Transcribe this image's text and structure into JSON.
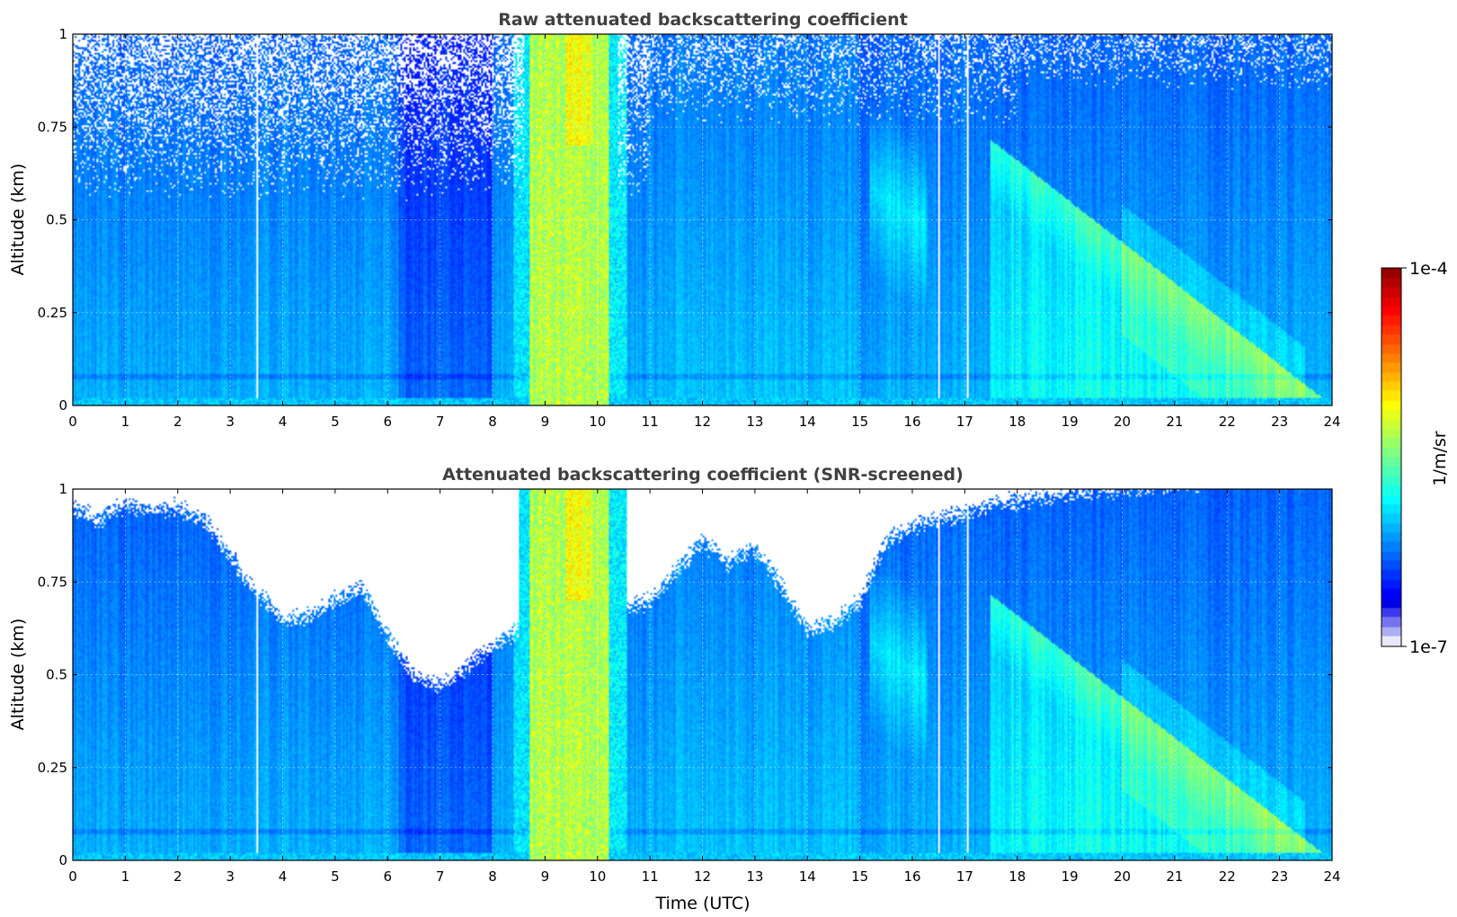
{
  "chart_data": [
    {
      "type": "heatmap",
      "title": "Raw attenuated backscattering coefficient",
      "xlabel": "",
      "ylabel": "Altitude (km)",
      "xlim": [
        0,
        24
      ],
      "ylim": [
        0,
        1
      ],
      "xticks": [
        "0",
        "1",
        "2",
        "3",
        "4",
        "5",
        "6",
        "7",
        "8",
        "9",
        "10",
        "11",
        "12",
        "13",
        "14",
        "15",
        "16",
        "17",
        "18",
        "19",
        "20",
        "21",
        "22",
        "23",
        "24"
      ],
      "yticks": [
        "0",
        "0.25",
        "0.5",
        "0.75",
        "1"
      ],
      "grid": true,
      "screened": false
    },
    {
      "type": "heatmap",
      "title": "Attenuated backscattering coefficient (SNR-screened)",
      "xlabel": "Time (UTC)",
      "ylabel": "Altitude (km)",
      "xlim": [
        0,
        24
      ],
      "ylim": [
        0,
        1
      ],
      "xticks": [
        "0",
        "1",
        "2",
        "3",
        "4",
        "5",
        "6",
        "7",
        "8",
        "9",
        "10",
        "11",
        "12",
        "13",
        "14",
        "15",
        "16",
        "17",
        "18",
        "19",
        "20",
        "21",
        "22",
        "23",
        "24"
      ],
      "yticks": [
        "0",
        "0.25",
        "0.5",
        "0.75",
        "1"
      ],
      "grid": true,
      "screened": true
    }
  ],
  "colorbar": {
    "label": "1/m/sr",
    "max_label": "1e-4",
    "min_label": "1e-7",
    "scale": "log",
    "colormap": "jet"
  },
  "field": {
    "fog_start_h": 8.7,
    "fog_end_h": 10.2,
    "white_gap_hours": [
      3.5,
      16.5,
      17.05
    ],
    "screen_boundary": [
      [
        0.0,
        0.95
      ],
      [
        0.5,
        0.92
      ],
      [
        1.0,
        0.96
      ],
      [
        1.5,
        0.94
      ],
      [
        2.0,
        0.95
      ],
      [
        2.5,
        0.92
      ],
      [
        3.0,
        0.82
      ],
      [
        3.5,
        0.72
      ],
      [
        4.0,
        0.65
      ],
      [
        4.5,
        0.66
      ],
      [
        5.0,
        0.7
      ],
      [
        5.5,
        0.74
      ],
      [
        6.0,
        0.6
      ],
      [
        6.5,
        0.5
      ],
      [
        7.0,
        0.47
      ],
      [
        7.5,
        0.52
      ],
      [
        8.0,
        0.58
      ],
      [
        8.5,
        0.62
      ],
      [
        10.6,
        0.68
      ],
      [
        11.0,
        0.7
      ],
      [
        11.5,
        0.78
      ],
      [
        12.0,
        0.86
      ],
      [
        12.5,
        0.8
      ],
      [
        13.0,
        0.84
      ],
      [
        13.5,
        0.74
      ],
      [
        14.0,
        0.62
      ],
      [
        14.5,
        0.64
      ],
      [
        15.0,
        0.7
      ],
      [
        15.5,
        0.86
      ],
      [
        16.0,
        0.9
      ],
      [
        17.0,
        0.94
      ],
      [
        18.0,
        0.97
      ],
      [
        19.0,
        0.99
      ],
      [
        24.0,
        1.05
      ]
    ]
  }
}
